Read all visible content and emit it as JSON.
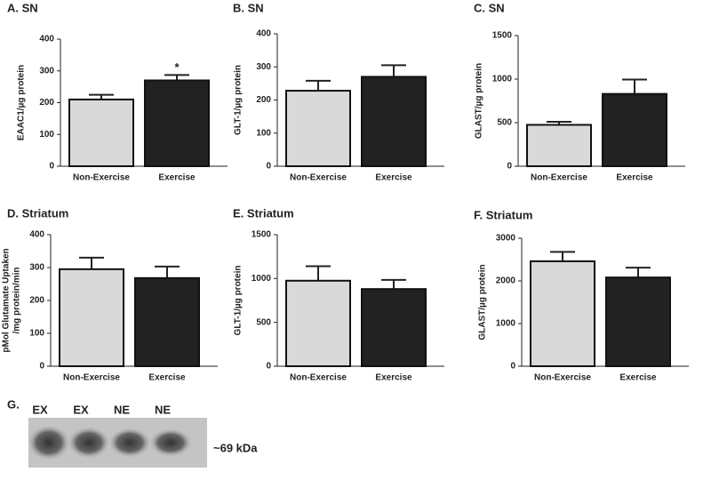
{
  "chart_data": [
    {
      "type": "bar",
      "title": "A. SN",
      "ylabel": [
        "EAAC1/µg protein"
      ],
      "categories": [
        "Non-Exercise",
        "Exercise"
      ],
      "values": [
        210,
        270
      ],
      "errors": [
        15,
        17
      ],
      "colors": [
        "#d9d9d9",
        "#222222"
      ],
      "ylim": [
        0,
        400
      ],
      "yticks": [
        0,
        100,
        200,
        300,
        400
      ],
      "annotations": [
        null,
        "*"
      ]
    },
    {
      "type": "bar",
      "title": "B. SN",
      "ylabel": [
        "GLT-1/µg protein"
      ],
      "categories": [
        "Non-Exercise",
        "Exercise"
      ],
      "values": [
        228,
        270
      ],
      "errors": [
        30,
        35
      ],
      "colors": [
        "#d9d9d9",
        "#222222"
      ],
      "ylim": [
        0,
        400
      ],
      "yticks": [
        0,
        100,
        200,
        300,
        400
      ]
    },
    {
      "type": "bar",
      "title": "C. SN",
      "ylabel": [
        "GLAST/µg protein"
      ],
      "categories": [
        "Non-Exercise",
        "Exercise"
      ],
      "values": [
        475,
        830
      ],
      "errors": [
        35,
        165
      ],
      "colors": [
        "#d9d9d9",
        "#222222"
      ],
      "ylim": [
        0,
        1500
      ],
      "yticks": [
        0,
        500,
        1000,
        1500
      ]
    },
    {
      "type": "bar",
      "title": "D. Striatum",
      "ylabel": [
        "pMol Glutamate Uptaken",
        "/mg protein/min"
      ],
      "categories": [
        "Non-Exercise",
        "Exercise"
      ],
      "values": [
        295,
        268
      ],
      "errors": [
        35,
        35
      ],
      "colors": [
        "#d9d9d9",
        "#222222"
      ],
      "ylim": [
        0,
        400
      ],
      "yticks": [
        0,
        100,
        200,
        300,
        400
      ]
    },
    {
      "type": "bar",
      "title": "E. Striatum",
      "ylabel": [
        "GLT-1/µg protein"
      ],
      "categories": [
        "Non-Exercise",
        "Exercise"
      ],
      "values": [
        975,
        880
      ],
      "errors": [
        165,
        105
      ],
      "colors": [
        "#d9d9d9",
        "#222222"
      ],
      "ylim": [
        0,
        1500
      ],
      "yticks": [
        0,
        500,
        1000,
        1500
      ]
    },
    {
      "type": "bar",
      "title": "F. Striatum",
      "ylabel": [
        "GLAST/µg protein"
      ],
      "categories": [
        "Non-Exercise",
        "Exercise"
      ],
      "values": [
        2460,
        2080
      ],
      "errors": [
        220,
        230
      ],
      "colors": [
        "#d9d9d9",
        "#222222"
      ],
      "ylim": [
        0,
        3000
      ],
      "yticks": [
        0,
        1000,
        2000,
        3000
      ]
    }
  ],
  "blot": {
    "title": "G.",
    "lanes": [
      "EX",
      "EX",
      "NE",
      "NE"
    ],
    "label": "~69 kDa"
  }
}
